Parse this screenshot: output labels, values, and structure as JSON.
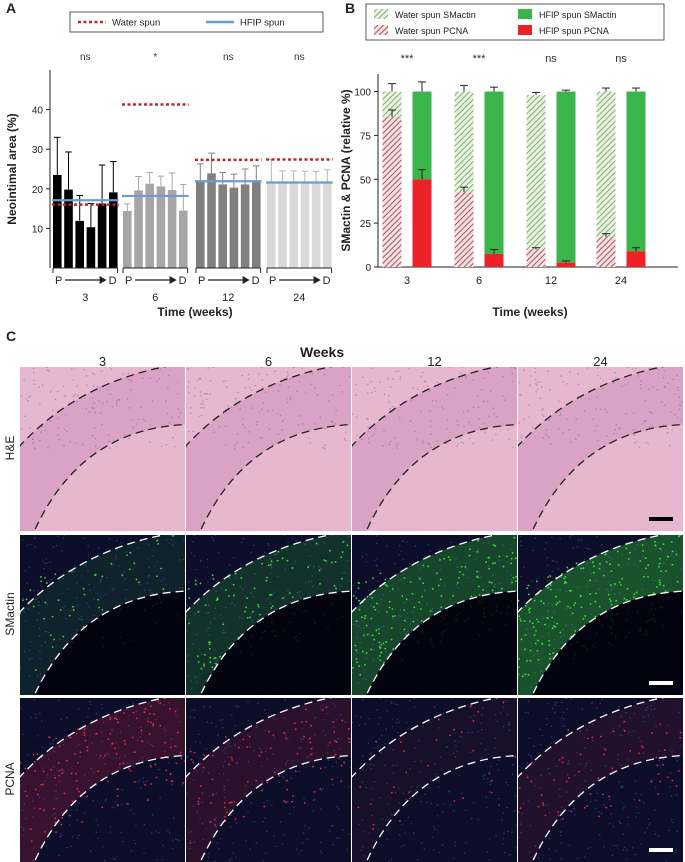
{
  "panels": {
    "A": "A",
    "B": "B",
    "C": "C"
  },
  "chart_data": [
    {
      "type": "bar",
      "panel": "A",
      "legend": [
        "Water spun",
        "HFIP spun"
      ],
      "ylabel": "Neointimal area (%)",
      "xlabel": "Time (weeks)",
      "ylim": [
        0,
        50
      ],
      "yticks": [
        "10",
        "20",
        "30",
        "40"
      ],
      "groups": [
        {
          "week": "3",
          "sig": "ns",
          "values": [
            23.5,
            19.8,
            11.9,
            10.3,
            16.3,
            19.1
          ],
          "errors": [
            9.5,
            9.5,
            6.4,
            6.0,
            9.7,
            7.8
          ],
          "water_mean": 16.0,
          "hfip_mean": 17.1,
          "color": "#000000"
        },
        {
          "week": "6",
          "sig": "*",
          "values": [
            14.4,
            19.6,
            21.3,
            20.6,
            19.7,
            14.5
          ],
          "errors": [
            1.8,
            3.5,
            2.8,
            2.6,
            4.3,
            6.6
          ],
          "water_mean": 41.3,
          "hfip_mean": 18.2,
          "color": "#a6a6a6"
        },
        {
          "week": "12",
          "sig": "ns",
          "values": [
            21.7,
            23.9,
            21.1,
            20.3,
            21.1,
            21.9
          ],
          "errors": [
            4.6,
            5.1,
            3.0,
            3.4,
            3.9,
            3.9
          ],
          "water_mean": 27.3,
          "hfip_mean": 21.9,
          "color": "#808080"
        },
        {
          "week": "24",
          "sig": "ns",
          "values": [
            21.6,
            21.6,
            21.6,
            21.6,
            21.6,
            21.6
          ],
          "errors": [
            5.8,
            2.9,
            2.9,
            2.8,
            2.8,
            3.2
          ],
          "water_mean": 27.4,
          "hfip_mean": 21.6,
          "color": "#d9d9d9"
        }
      ],
      "position_labels": [
        "P",
        "D"
      ],
      "colors": {
        "water_line": "#c0262d",
        "hfip_line": "#6b9bd1"
      }
    },
    {
      "type": "bar",
      "panel": "B",
      "stacked": true,
      "legend": [
        "Water spun SMactin",
        "HFIP spun SMactin",
        "Water spun PCNA",
        "HFIP spun PCNA"
      ],
      "ylabel": "SMactin & PCNA (relative %)",
      "xlabel": "Time (weeks)",
      "ylim": [
        0,
        110
      ],
      "yticks": [
        "0",
        "25",
        "50",
        "75",
        "100"
      ],
      "categories": [
        "3",
        "6",
        "12",
        "24"
      ],
      "sig": [
        "***",
        "***",
        "ns",
        "ns"
      ],
      "water_pcna": [
        85.5,
        42.5,
        10.0,
        17.0
      ],
      "water_pcna_err": [
        4.0,
        3.0,
        1.0,
        2.0
      ],
      "water_total": [
        100,
        100,
        98,
        100
      ],
      "water_total_err": [
        4.5,
        3.5,
        1.5,
        2.0
      ],
      "hfip_pcna": [
        50.0,
        7.5,
        2.5,
        9.0
      ],
      "hfip_pcna_err": [
        5.5,
        2.5,
        1.0,
        2.0
      ],
      "hfip_total": [
        100,
        100,
        100,
        100
      ],
      "hfip_total_err": [
        5.5,
        2.5,
        0.8,
        2.0
      ],
      "colors": {
        "water_smactin": "#7fae6c",
        "hfip_smactin": "#3ab54a",
        "water_pcna": "#b0505a",
        "hfip_pcna": "#ec2228"
      }
    }
  ],
  "panelC": {
    "title": "Weeks",
    "columns": [
      "3",
      "6",
      "12",
      "24"
    ],
    "rows": [
      "H&E",
      "SMactin",
      "PCNA"
    ],
    "colors": {
      "he_bg": "#e7b7cf",
      "he_dark": "#c98ab6",
      "fluor_bg": "#0d0f2a",
      "green": "#3df23a",
      "red": "#ff2a4a",
      "blue": "#3b4fb8"
    }
  }
}
